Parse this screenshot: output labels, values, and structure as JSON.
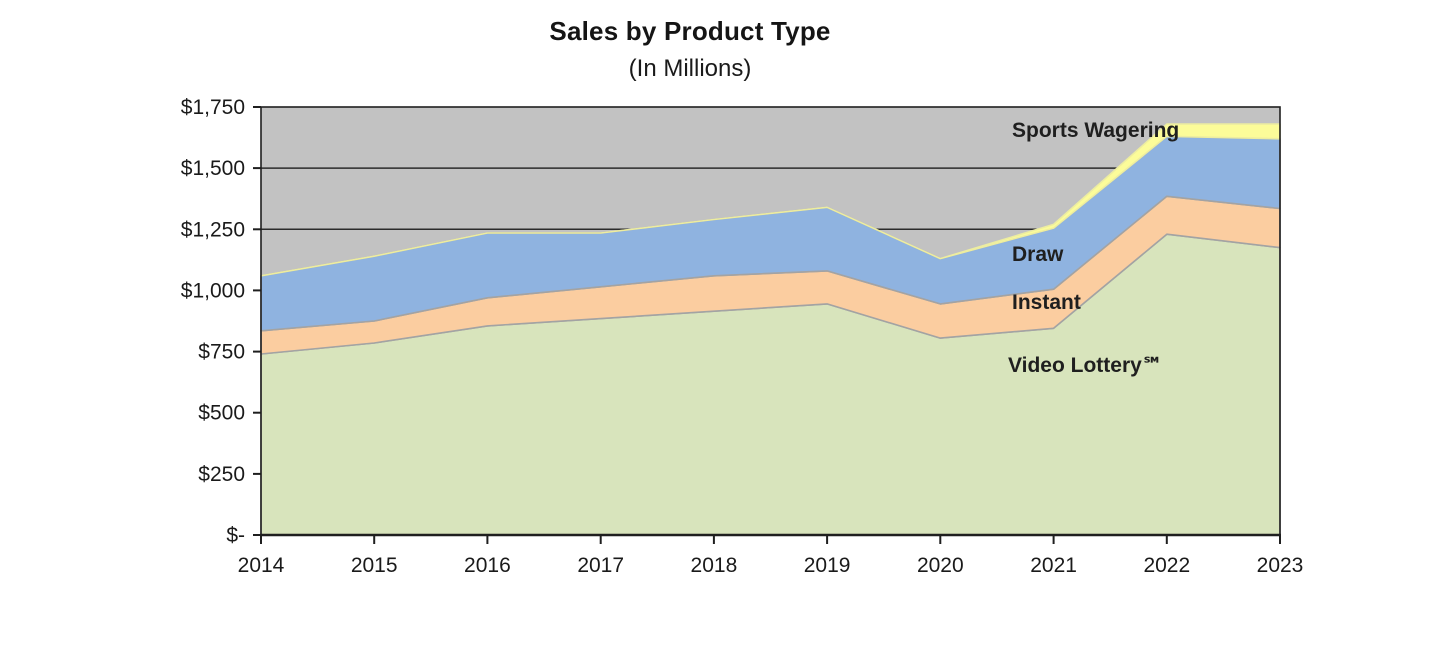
{
  "title": "Sales by Product Type",
  "subtitle": "(In Millions)",
  "chart_data": {
    "type": "area",
    "stacked": true,
    "x": [
      2014,
      2015,
      2016,
      2017,
      2018,
      2019,
      2020,
      2021,
      2022,
      2023
    ],
    "series": [
      {
        "id": "video-lottery",
        "name": "Video Lottery℠",
        "color": "#d8e4bc",
        "stroke": "#a3a3a3",
        "values": [
          740,
          785,
          855,
          885,
          915,
          945,
          805,
          845,
          1230,
          1175
        ]
      },
      {
        "id": "instant",
        "name": "Instant",
        "color": "#fbcda0",
        "stroke": "#a3a3a3",
        "values": [
          95,
          90,
          115,
          130,
          145,
          135,
          140,
          160,
          155,
          160
        ]
      },
      {
        "id": "draw",
        "name": "Draw",
        "color": "#8fb3e0",
        "stroke": "#a3a3a3",
        "values": [
          225,
          265,
          265,
          220,
          230,
          260,
          185,
          250,
          245,
          285
        ]
      },
      {
        "id": "sports-wagering",
        "name": "Sports Wagering",
        "color": "#fcfc99",
        "stroke": "#ededa0",
        "values": [
          0,
          0,
          0,
          0,
          0,
          0,
          0,
          15,
          50,
          60
        ]
      }
    ],
    "totals": [
      1060,
      1140,
      1235,
      1235,
      1290,
      1340,
      1130,
      1270,
      1680,
      1680
    ],
    "xlabel": "",
    "ylabel": "",
    "ylim": [
      0,
      1750
    ],
    "ytick_interval": 250,
    "y_ticks": [
      {
        "label": "$1,750",
        "value": 1750
      },
      {
        "label": "$1,500",
        "value": 1500
      },
      {
        "label": "$1,250",
        "value": 1250
      },
      {
        "label": "$1,000",
        "value": 1000
      },
      {
        "label": "$750",
        "value": 750
      },
      {
        "label": "$500",
        "value": 500
      },
      {
        "label": "$250",
        "value": 250
      },
      {
        "label": "$-",
        "value": 0
      }
    ],
    "gridline_values": [
      1500,
      1250
    ],
    "grid": "horizontal, visible above stack only",
    "legend": "inline labels on areas",
    "plot_bg": "#c2c2c2",
    "gridline_color": "#2b2b2b",
    "axis_color": "#1f1f1f"
  }
}
